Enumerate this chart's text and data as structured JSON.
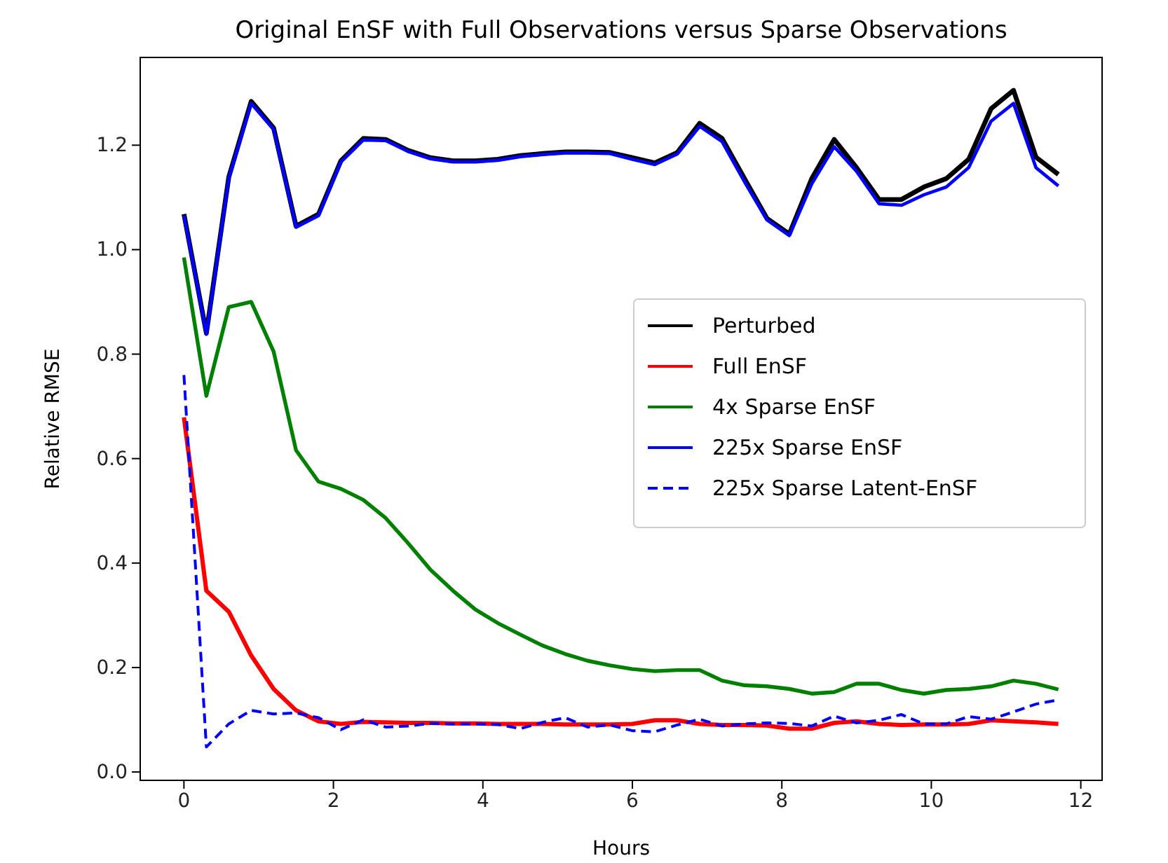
{
  "chart_data": {
    "type": "line",
    "title": "Original EnSF with Full Observations versus Sparse Observations",
    "xlabel": "Hours",
    "ylabel": "Relative RMSE",
    "x": [
      0,
      0.3,
      0.6,
      0.9,
      1.2,
      1.5,
      1.8,
      2.1,
      2.4,
      2.7,
      3,
      3.3,
      3.6,
      3.9,
      4.2,
      4.5,
      4.8,
      5.1,
      5.4,
      5.7,
      6,
      6.3,
      6.6,
      6.9,
      7.2,
      7.5,
      7.8,
      8.1,
      8.4,
      8.7,
      9,
      9.3,
      9.6,
      9.9,
      10.2,
      10.5,
      10.8,
      11.1,
      11.4,
      11.7
    ],
    "series": [
      {
        "name": "Perturbed",
        "color": "#000000",
        "line_style": "solid",
        "values": [
          1.068,
          0.84,
          1.139,
          1.284,
          1.233,
          1.045,
          1.068,
          1.17,
          1.213,
          1.211,
          1.19,
          1.176,
          1.17,
          1.17,
          1.173,
          1.18,
          1.184,
          1.187,
          1.187,
          1.186,
          1.176,
          1.166,
          1.186,
          1.242,
          1.213,
          1.136,
          1.06,
          1.03,
          1.136,
          1.211,
          1.157,
          1.096,
          1.096,
          1.12,
          1.136,
          1.173,
          1.27,
          1.305,
          1.177,
          1.144
        ]
      },
      {
        "name": "Full EnSF",
        "color": "#ff0000",
        "line_style": "solid",
        "values": [
          0.679,
          0.347,
          0.307,
          0.223,
          0.159,
          0.118,
          0.097,
          0.092,
          0.096,
          0.095,
          0.094,
          0.094,
          0.093,
          0.093,
          0.092,
          0.092,
          0.092,
          0.091,
          0.091,
          0.091,
          0.092,
          0.099,
          0.099,
          0.092,
          0.09,
          0.09,
          0.089,
          0.083,
          0.083,
          0.094,
          0.097,
          0.092,
          0.09,
          0.091,
          0.091,
          0.092,
          0.099,
          0.097,
          0.095,
          0.092
        ]
      },
      {
        "name": "4x Sparse EnSF",
        "color": "#008000",
        "line_style": "solid",
        "values": [
          0.985,
          0.72,
          0.89,
          0.9,
          0.805,
          0.616,
          0.556,
          0.542,
          0.521,
          0.486,
          0.438,
          0.387,
          0.347,
          0.311,
          0.285,
          0.263,
          0.242,
          0.226,
          0.213,
          0.204,
          0.197,
          0.193,
          0.195,
          0.195,
          0.175,
          0.166,
          0.164,
          0.159,
          0.15,
          0.153,
          0.169,
          0.169,
          0.157,
          0.15,
          0.157,
          0.159,
          0.164,
          0.175,
          0.169,
          0.158
        ]
      },
      {
        "name": "225x Sparse EnSF",
        "color": "#0000ff",
        "line_style": "solid",
        "values": [
          1.065,
          0.838,
          1.137,
          1.28,
          1.23,
          1.043,
          1.065,
          1.168,
          1.21,
          1.209,
          1.188,
          1.174,
          1.168,
          1.168,
          1.171,
          1.178,
          1.182,
          1.185,
          1.185,
          1.184,
          1.173,
          1.163,
          1.183,
          1.236,
          1.207,
          1.13,
          1.057,
          1.027,
          1.126,
          1.197,
          1.15,
          1.088,
          1.085,
          1.105,
          1.12,
          1.157,
          1.246,
          1.28,
          1.157,
          1.122
        ]
      },
      {
        "name": "225x Sparse Latent-EnSF",
        "color": "#0000ff",
        "line_style": "dashed",
        "values": [
          0.76,
          0.048,
          0.092,
          0.118,
          0.111,
          0.113,
          0.104,
          0.081,
          0.1,
          0.086,
          0.088,
          0.093,
          0.092,
          0.092,
          0.091,
          0.083,
          0.095,
          0.104,
          0.086,
          0.09,
          0.079,
          0.077,
          0.09,
          0.101,
          0.088,
          0.092,
          0.094,
          0.093,
          0.088,
          0.107,
          0.094,
          0.099,
          0.11,
          0.092,
          0.092,
          0.106,
          0.101,
          0.115,
          0.13,
          0.138
        ]
      }
    ],
    "xlim": [
      -0.585,
      12.285
    ],
    "ylim": [
      -0.016,
      1.368
    ],
    "xticks": [
      0,
      2,
      4,
      6,
      8,
      10,
      12
    ],
    "yticks": [
      {
        "value": 0,
        "label": "0.0"
      },
      {
        "value": 0.2,
        "label": "0.2"
      },
      {
        "value": 0.4,
        "label": "0.4"
      },
      {
        "value": 0.6,
        "label": "0.6"
      },
      {
        "value": 0.8,
        "label": "0.8"
      },
      {
        "value": 1,
        "label": "1.0"
      },
      {
        "value": 1.2,
        "label": "1.2"
      }
    ],
    "legend": "right"
  }
}
